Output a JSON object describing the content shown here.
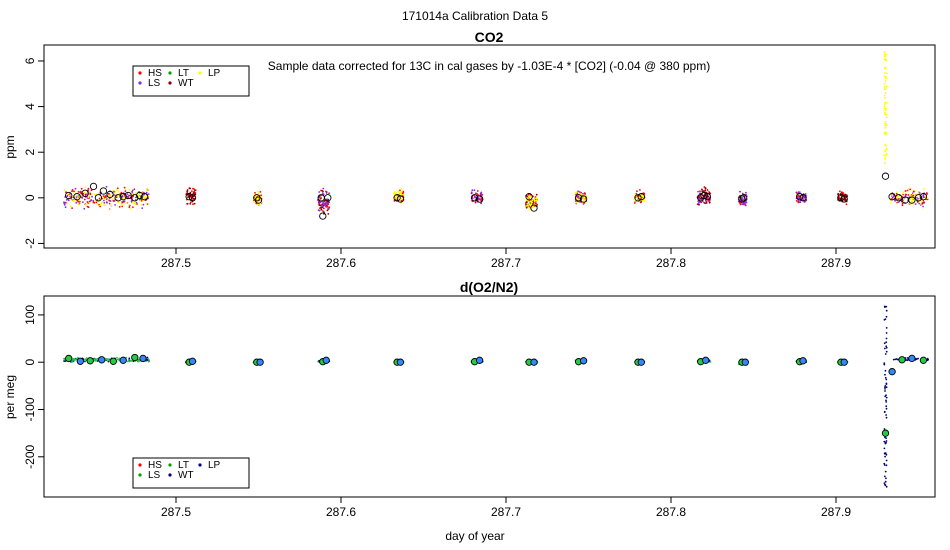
{
  "page": {
    "suptitle": "171014a   Calibration Data 5",
    "xlabel": "day of year"
  },
  "colors": {
    "HS": "#ff0000",
    "LS": "#8a2be2",
    "LT": "#00a000",
    "WT": "#8b0000",
    "LP": "#ffff00",
    "o2_main": "#000080",
    "o2_box": "#22cc44",
    "o2_box2": "#3388ff"
  },
  "chart_data": [
    {
      "type": "scatter",
      "title": "CO2",
      "ylabel": "ppm",
      "xlabel": "",
      "annotation": "Sample data corrected for 13C in cal gases by -1.03E-4 * [CO2] (-0.04 @ 380 ppm)",
      "xlim": [
        287.42,
        287.96
      ],
      "ylim": [
        -2.2,
        6.7
      ],
      "xticks": [
        287.5,
        287.6,
        287.7,
        287.8,
        287.9
      ],
      "xticklabels": [
        "287.5",
        "287.6",
        "287.7",
        "287.8",
        "287.9"
      ],
      "yticks": [
        -2,
        0,
        2,
        4,
        6
      ],
      "yticklabels": [
        "-2",
        "0",
        "2",
        "4",
        "6"
      ],
      "legend": {
        "position": "top-left",
        "entries": [
          {
            "label": "HS",
            "color": "#ff0000"
          },
          {
            "label": "LS",
            "color": "#8a2be2"
          },
          {
            "label": "LT",
            "color": "#00a000"
          },
          {
            "label": "WT",
            "color": "#8b0000"
          },
          {
            "label": "LP",
            "color": "#ffff00"
          }
        ]
      },
      "means_x": [
        287.435,
        287.44,
        287.445,
        287.45,
        287.453,
        287.456,
        287.46,
        287.465,
        287.468,
        287.471,
        287.475,
        287.478,
        287.481,
        287.508,
        287.51,
        287.549,
        287.55,
        287.588,
        287.589,
        287.592,
        287.634,
        287.636,
        287.681,
        287.684,
        287.714,
        287.717,
        287.744,
        287.747,
        287.78,
        287.782,
        287.818,
        287.82,
        287.822,
        287.843,
        287.844,
        287.878,
        287.88,
        287.903,
        287.905,
        287.93,
        287.934,
        287.938,
        287.942,
        287.946,
        287.95,
        287.953
      ],
      "means_y": [
        0.1,
        0.05,
        0.2,
        0.5,
        0.0,
        0.3,
        0.15,
        0.0,
        0.05,
        0.1,
        0.0,
        0.1,
        0.05,
        0.05,
        0.0,
        0.0,
        -0.1,
        0.0,
        -0.8,
        0.0,
        0.0,
        -0.05,
        0.0,
        -0.05,
        0.05,
        -0.45,
        0.0,
        -0.05,
        0.0,
        0.05,
        0.0,
        0.1,
        0.05,
        -0.05,
        0.0,
        0.05,
        0.0,
        0.0,
        -0.05,
        0.95,
        0.05,
        0.0,
        -0.1,
        -0.1,
        0.0,
        0.05
      ],
      "clusters": [
        {
          "x_start": 287.432,
          "x_end": 287.484,
          "center": 0.0,
          "spread": 0.6,
          "series": [
            "HS",
            "LS",
            "LP"
          ]
        },
        {
          "x_start": 287.506,
          "x_end": 287.512,
          "center": 0.1,
          "spread": 0.5,
          "series": [
            "HS",
            "WT"
          ]
        },
        {
          "x_start": 287.547,
          "x_end": 287.552,
          "center": -0.05,
          "spread": 0.4,
          "series": [
            "HS",
            "LP"
          ]
        },
        {
          "x_start": 287.586,
          "x_end": 287.593,
          "center": -0.2,
          "spread": 0.7,
          "series": [
            "HS",
            "WT",
            "LS"
          ]
        },
        {
          "x_start": 287.632,
          "x_end": 287.638,
          "center": 0.05,
          "spread": 0.45,
          "series": [
            "HS",
            "LP"
          ]
        },
        {
          "x_start": 287.679,
          "x_end": 287.686,
          "center": 0.0,
          "spread": 0.45,
          "series": [
            "HS",
            "LS"
          ]
        },
        {
          "x_start": 287.712,
          "x_end": 287.719,
          "center": -0.2,
          "spread": 0.5,
          "series": [
            "HS",
            "WT",
            "LP"
          ]
        },
        {
          "x_start": 287.742,
          "x_end": 287.749,
          "center": 0.0,
          "spread": 0.4,
          "series": [
            "HS",
            "LS",
            "LP"
          ]
        },
        {
          "x_start": 287.778,
          "x_end": 287.784,
          "center": 0.0,
          "spread": 0.4,
          "series": [
            "HS",
            "LP"
          ]
        },
        {
          "x_start": 287.816,
          "x_end": 287.824,
          "center": 0.05,
          "spread": 0.5,
          "series": [
            "HS",
            "LS",
            "WT"
          ]
        },
        {
          "x_start": 287.841,
          "x_end": 287.846,
          "center": -0.05,
          "spread": 0.45,
          "series": [
            "HS",
            "LS"
          ]
        },
        {
          "x_start": 287.876,
          "x_end": 287.882,
          "center": 0.05,
          "spread": 0.45,
          "series": [
            "HS",
            "LS"
          ]
        },
        {
          "x_start": 287.901,
          "x_end": 287.907,
          "center": 0.0,
          "spread": 0.4,
          "series": [
            "HS",
            "WT"
          ]
        },
        {
          "x_start": 287.933,
          "x_end": 287.956,
          "center": 0.0,
          "spread": 0.5,
          "series": [
            "HS",
            "LS",
            "LP"
          ]
        }
      ],
      "spike": {
        "x": 287.93,
        "y_min": 1.5,
        "y_max": 6.4,
        "series": "LP"
      }
    },
    {
      "type": "scatter",
      "title": "d(O2/N2)",
      "ylabel": "per meg",
      "xlabel": "day of year",
      "xlim": [
        287.42,
        287.96
      ],
      "ylim": [
        -285,
        140
      ],
      "xticks": [
        287.5,
        287.6,
        287.7,
        287.8,
        287.9
      ],
      "xticklabels": [
        "287.5",
        "287.6",
        "287.7",
        "287.8",
        "287.9"
      ],
      "yticks": [
        -200,
        -100,
        0,
        100
      ],
      "yticklabels": [
        "-200",
        "-100",
        "0",
        "100"
      ],
      "legend": {
        "position": "bottom-left",
        "entries": [
          {
            "label": "HS",
            "color": "#ff0000"
          },
          {
            "label": "LS",
            "color": "#00a000"
          },
          {
            "label": "LT",
            "color": "#00a000"
          },
          {
            "label": "WT",
            "color": "#000080"
          },
          {
            "label": "LP",
            "color": "#000080"
          }
        ]
      },
      "means_x": [
        287.435,
        287.442,
        287.448,
        287.455,
        287.462,
        287.468,
        287.475,
        287.48,
        287.508,
        287.51,
        287.549,
        287.551,
        287.589,
        287.591,
        287.634,
        287.636,
        287.681,
        287.684,
        287.714,
        287.717,
        287.744,
        287.747,
        287.78,
        287.782,
        287.818,
        287.821,
        287.843,
        287.845,
        287.878,
        287.88,
        287.903,
        287.905,
        287.93,
        287.934,
        287.94,
        287.946,
        287.953
      ],
      "means_y": [
        8,
        2,
        3,
        5,
        2,
        4,
        10,
        8,
        0,
        2,
        0,
        0,
        1,
        4,
        0,
        0,
        1,
        4,
        0,
        0,
        1,
        3,
        0,
        0,
        1,
        4,
        0,
        0,
        1,
        3,
        0,
        0,
        -150,
        -20,
        5,
        8,
        4
      ],
      "clusters": [
        {
          "x_start": 287.432,
          "x_end": 287.484,
          "center": 5,
          "spread": 6,
          "series": [
            "WT",
            "LT"
          ]
        },
        {
          "x_start": 287.506,
          "x_end": 287.512,
          "center": 1,
          "spread": 3,
          "series": [
            "LT",
            "WT"
          ]
        },
        {
          "x_start": 287.547,
          "x_end": 287.552,
          "center": 0,
          "spread": 3,
          "series": [
            "LT"
          ]
        },
        {
          "x_start": 287.586,
          "x_end": 287.593,
          "center": 2,
          "spread": 3,
          "series": [
            "LT",
            "WT"
          ]
        },
        {
          "x_start": 287.632,
          "x_end": 287.638,
          "center": 0,
          "spread": 3,
          "series": [
            "LT"
          ]
        },
        {
          "x_start": 287.679,
          "x_end": 287.686,
          "center": 2,
          "spread": 3,
          "series": [
            "LT",
            "WT"
          ]
        },
        {
          "x_start": 287.712,
          "x_end": 287.719,
          "center": 0,
          "spread": 3,
          "series": [
            "LT"
          ]
        },
        {
          "x_start": 287.742,
          "x_end": 287.749,
          "center": 2,
          "spread": 3,
          "series": [
            "LT",
            "WT"
          ]
        },
        {
          "x_start": 287.778,
          "x_end": 287.784,
          "center": 0,
          "spread": 3,
          "series": [
            "LT"
          ]
        },
        {
          "x_start": 287.816,
          "x_end": 287.824,
          "center": 2,
          "spread": 3,
          "series": [
            "LT",
            "WT"
          ]
        },
        {
          "x_start": 287.841,
          "x_end": 287.846,
          "center": -3,
          "spread": 6,
          "series": [
            "LT"
          ]
        },
        {
          "x_start": 287.876,
          "x_end": 287.882,
          "center": 2,
          "spread": 3,
          "series": [
            "LT",
            "WT"
          ]
        },
        {
          "x_start": 287.901,
          "x_end": 287.907,
          "center": 0,
          "spread": 3,
          "series": [
            "LT"
          ]
        },
        {
          "x_start": 287.935,
          "x_end": 287.956,
          "center": 6,
          "spread": 4,
          "series": [
            "WT"
          ]
        }
      ],
      "spike": {
        "x": 287.93,
        "y_min": -265,
        "y_max": 130,
        "series": "WT"
      }
    }
  ]
}
